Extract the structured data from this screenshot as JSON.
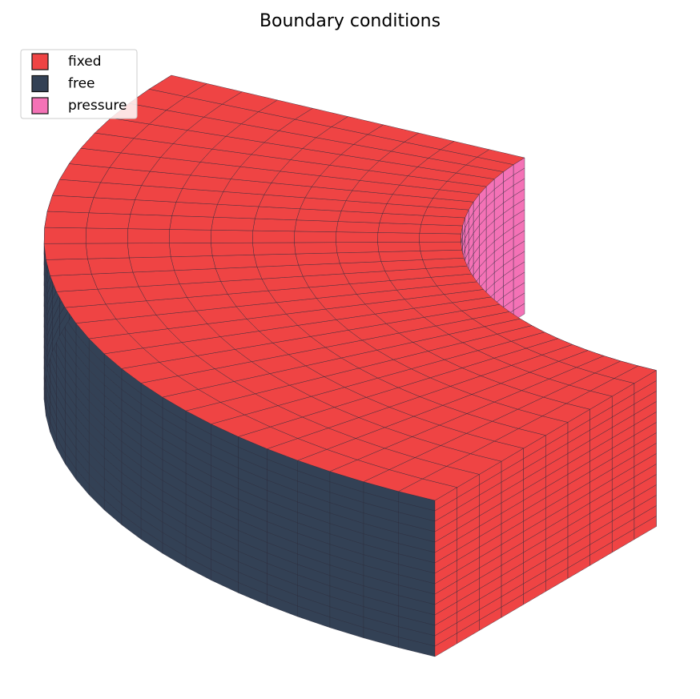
{
  "title": "Boundary conditions",
  "legend": [
    {
      "label": "fixed",
      "color": "#ef4444"
    },
    {
      "label": "free",
      "color": "#334155"
    },
    {
      "label": "pressure",
      "color": "#f472b6"
    }
  ]
}
